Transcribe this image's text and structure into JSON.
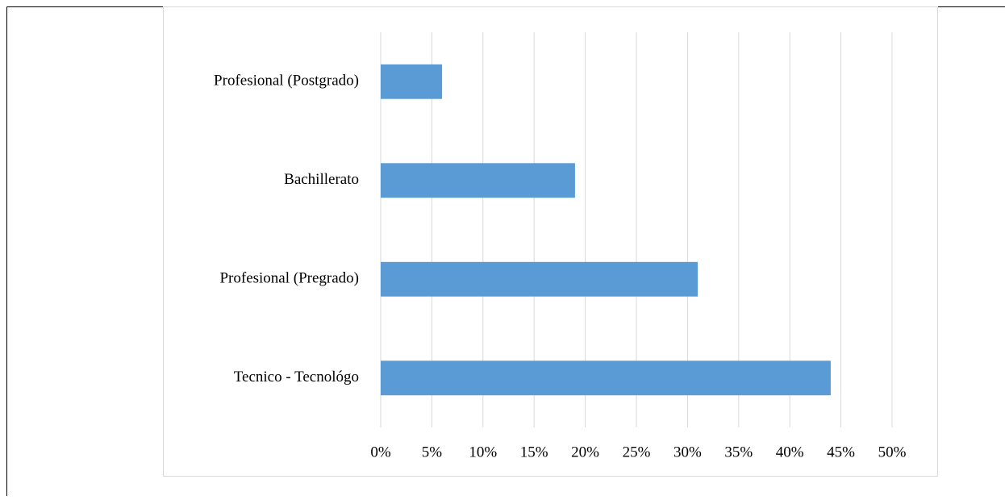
{
  "chart_data": {
    "type": "bar",
    "orientation": "horizontal",
    "categories": [
      "Tecnico - Tecnológo",
      "Profesional (Pregrado)",
      "Bachillerato",
      "Profesional (Postgrado)"
    ],
    "values": [
      44,
      31,
      19,
      6
    ],
    "color": "#5b9bd5",
    "xlim": [
      0,
      50
    ],
    "xticks": [
      {
        "value": 0,
        "label": "0%"
      },
      {
        "value": 5,
        "label": "5%"
      },
      {
        "value": 10,
        "label": "10%"
      },
      {
        "value": 15,
        "label": "15%"
      },
      {
        "value": 20,
        "label": "20%"
      },
      {
        "value": 25,
        "label": "25%"
      },
      {
        "value": 30,
        "label": "30%"
      },
      {
        "value": 35,
        "label": "35%"
      },
      {
        "value": 40,
        "label": "40%"
      },
      {
        "value": 45,
        "label": "45%"
      },
      {
        "value": 50,
        "label": "50%"
      }
    ],
    "grid": true
  }
}
